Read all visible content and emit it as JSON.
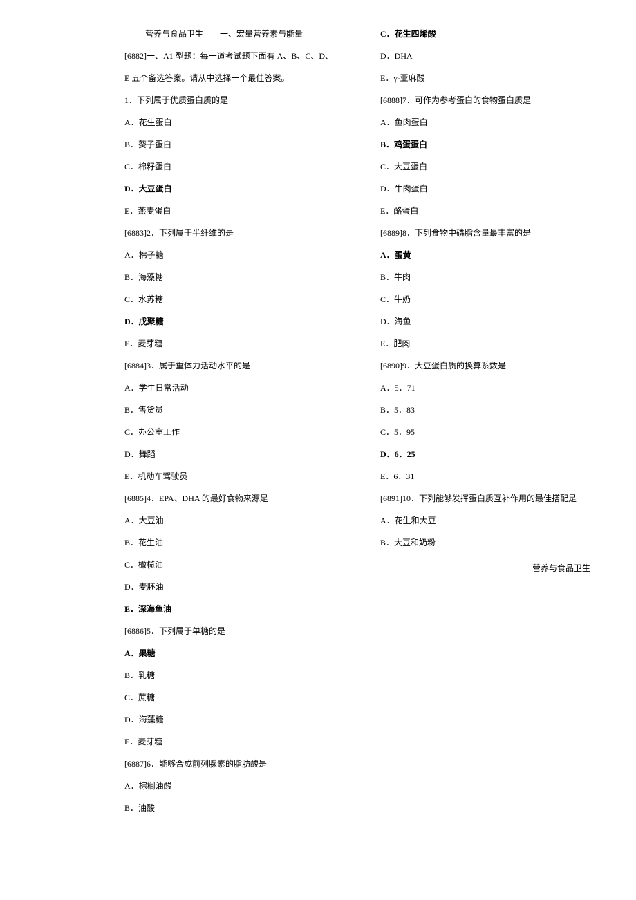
{
  "title": "营养与食品卫生——一、宏量营养素与能量",
  "intro_line1": "[6882]一、A1 型题：每一道考试题下面有 A、B、C、D、",
  "intro_line2": "E 五个备选答案。请从中选择一个最佳答案。",
  "q1": {
    "stem": "1．下列属于优质蛋白质的是",
    "a": "A．花生蛋白",
    "b": "B．葵子蛋白",
    "c": "C．棉籽蛋白",
    "d": "D．大豆蛋白",
    "e": "E．燕麦蛋白"
  },
  "q2": {
    "stem": "[6883]2．下列属于半纤维的是",
    "a": "A．棉子糖",
    "b": "B．海藻糖",
    "c": "C．水苏糖",
    "d": "D．戊聚糖",
    "e": "E．麦芽糖"
  },
  "q3": {
    "stem": "[6884]3．属于重体力活动水平的是",
    "a": "A．学生日常活动",
    "b": "B．售货员",
    "c": "C．办公室工作",
    "d": "D．舞蹈",
    "e": "E．机动车驾驶员"
  },
  "q4": {
    "stem": "[6885]4．EPA、DHA 的最好食物来源是",
    "a": "A．大豆油",
    "b": "B．花生油",
    "c": "C．橄榄油",
    "d": "D．麦胚油",
    "e": "E．深海鱼油"
  },
  "q5": {
    "stem": "[6886]5．下列属于单糖的是",
    "a": "A．果糖",
    "b": "B．乳糖",
    "c": "C．蔗糖",
    "d": "D．海藻糖",
    "e": "E．麦芽糖"
  },
  "q6": {
    "stem": "[6887]6．能够合成前列腺素的脂肪酸是",
    "a": "A．棕榈油酸",
    "b": "B．油酸",
    "c": "C．花生四烯酸",
    "d": "D．DHA",
    "e": "E．γ-亚麻酸"
  },
  "q7": {
    "stem": "[6888]7．可作为参考蛋白的食物蛋白质是",
    "a": "A．鱼肉蛋白",
    "b": "B．鸡蛋蛋白",
    "c": "C．大豆蛋白",
    "d": "D．牛肉蛋白",
    "e": "E．酪蛋白"
  },
  "q8": {
    "stem": "[6889]8．下列食物中磷脂含量最丰富的是",
    "a": "A．蛋黄",
    "b": "B．牛肉",
    "c": "C．牛奶",
    "d": "D．海鱼",
    "e": "E．肥肉"
  },
  "q9": {
    "stem": "[6890]9．大豆蛋白质的换算系数是",
    "a": "A．5．71",
    "b": "B．5．83",
    "c": "C．5．95",
    "d": "D．6．25",
    "e": "E．6．31"
  },
  "q10": {
    "stem": "[6891]10．下列能够发挥蛋白质互补作用的最佳搭配是",
    "a": "A．花生和大豆",
    "b": "B．大豆和奶粉"
  },
  "footer": "营养与食品卫生"
}
